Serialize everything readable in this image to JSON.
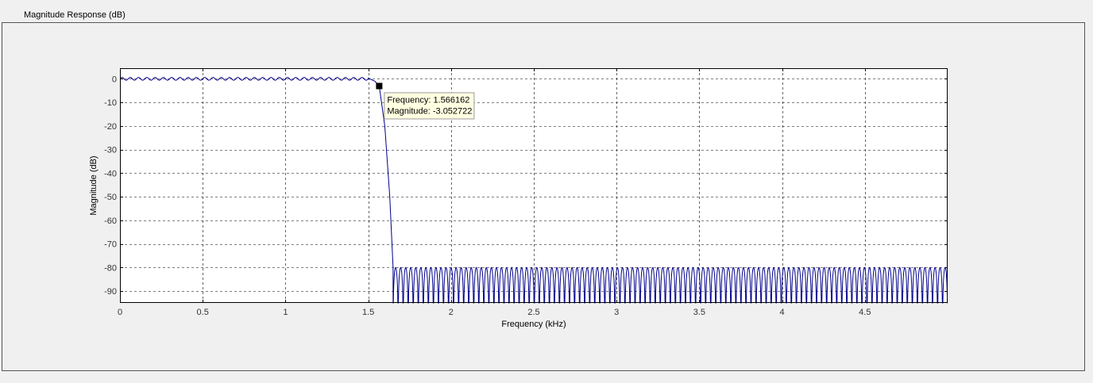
{
  "panel": {
    "title": "Magnitude Response (dB)"
  },
  "chart_data": {
    "type": "line",
    "title": "Magnitude Response (dB)",
    "xlabel": "Frequency (kHz)",
    "ylabel": "Magnitude (dB)",
    "xlim": [
      0,
      5.0
    ],
    "ylim": [
      -95,
      4.5
    ],
    "xticks": [
      0,
      0.5,
      1,
      1.5,
      2,
      2.5,
      3,
      3.5,
      4,
      4.5
    ],
    "xtick_labels": [
      "0",
      "0.5",
      "1",
      "1.5",
      "2",
      "2.5",
      "3",
      "3.5",
      "4",
      "4.5"
    ],
    "yticks": [
      0,
      -10,
      -20,
      -30,
      -40,
      -50,
      -60,
      -70,
      -80,
      -90
    ],
    "ytick_labels": [
      "0",
      "-10",
      "-20",
      "-30",
      "-40",
      "-50",
      "-60",
      "-70",
      "-80",
      "-90"
    ],
    "grid": true,
    "series": [
      {
        "name": "Magnitude response",
        "color": "#00008b",
        "passband": {
          "start_khz": 0,
          "edge_khz": 1.5,
          "ripple_db": 0.6,
          "lobes": 30
        },
        "transition": [
          [
            1.5,
            0.3
          ],
          [
            1.54,
            -1.0
          ],
          [
            1.566162,
            -3.052722
          ],
          [
            1.6,
            -20
          ],
          [
            1.63,
            -50
          ],
          [
            1.65,
            -80
          ]
        ],
        "stopband": {
          "start_khz": 1.65,
          "end_khz": 5.0,
          "lobe_peak_db": -80,
          "lobes": 110
        }
      }
    ],
    "annotations": [
      {
        "type": "datatip",
        "x": 1.566162,
        "y": -3.052722,
        "lines": [
          "Frequency: 1.566162",
          "Magnitude: -3.052722"
        ]
      }
    ]
  },
  "colors": {
    "background": "#f0f0f0",
    "plot_area": "#ffffff",
    "line": "#00008b",
    "datatip_bg": "#ffffe1"
  }
}
